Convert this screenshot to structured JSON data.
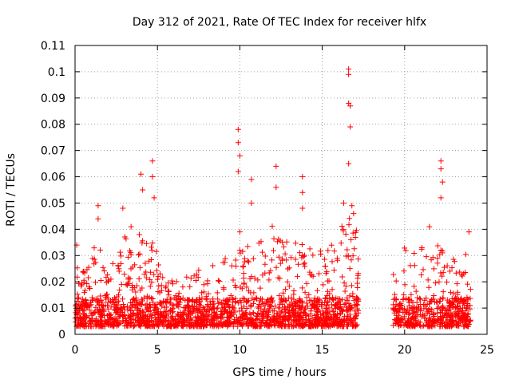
{
  "chart_data": {
    "type": "scatter",
    "title": "Day 312 of 2021, Rate Of TEC Index for receiver hlfx",
    "xlabel": "GPS time / hours",
    "ylabel": "ROTI / TECUs",
    "xlim": [
      0,
      25
    ],
    "ylim": [
      0,
      0.11
    ],
    "x_ticks": [
      "0",
      "5",
      "10",
      "15",
      "20",
      "25"
    ],
    "x_tick_values": [
      0,
      5,
      10,
      15,
      20,
      25
    ],
    "y_ticks": [
      "0",
      "0.01",
      "0.02",
      "0.03",
      "0.04",
      "0.05",
      "0.06",
      "0.07",
      "0.08",
      "0.09",
      "0.1",
      "0.11"
    ],
    "y_tick_values": [
      0,
      0.01,
      0.02,
      0.03,
      0.04,
      0.05,
      0.06,
      0.07,
      0.08,
      0.09,
      0.1,
      0.11
    ],
    "grid": true,
    "marker": "plus",
    "color": "#ff0000",
    "data_gap_hours": [
      17.2,
      19.3
    ],
    "series": [
      {
        "name": "ROTI",
        "envelope": {
          "x": [
            0,
            0.1,
            0.3,
            0.6,
            1.0,
            1.4,
            1.6,
            2.0,
            2.5,
            2.9,
            3.2,
            3.6,
            4.0,
            4.4,
            4.8,
            5.0,
            5.4,
            6.0,
            6.5,
            7.0,
            7.5,
            8.0,
            8.5,
            9.0,
            9.5,
            9.9,
            10.2,
            10.6,
            11.0,
            11.5,
            12.0,
            12.3,
            12.8,
            13.3,
            13.8,
            14.2,
            14.6,
            15.0,
            15.5,
            16.0,
            16.4,
            16.7,
            17.0,
            17.2,
            19.3,
            19.6,
            20.0,
            20.5,
            21.0,
            21.4,
            21.8,
            22.2,
            22.6,
            23.0,
            23.4,
            23.8,
            24.0
          ],
          "upper": [
            0.025,
            0.034,
            0.03,
            0.025,
            0.028,
            0.045,
            0.03,
            0.025,
            0.03,
            0.047,
            0.035,
            0.028,
            0.04,
            0.035,
            0.037,
            0.03,
            0.022,
            0.02,
            0.022,
            0.022,
            0.025,
            0.025,
            0.028,
            0.03,
            0.03,
            0.039,
            0.035,
            0.038,
            0.035,
            0.037,
            0.042,
            0.038,
            0.035,
            0.038,
            0.035,
            0.04,
            0.035,
            0.033,
            0.035,
            0.038,
            0.045,
            0.045,
            0.045,
            0.035,
            0.025,
            0.03,
            0.035,
            0.03,
            0.04,
            0.035,
            0.03,
            0.038,
            0.028,
            0.03,
            0.033,
            0.03,
            0.03
          ],
          "typical_low": 0.003
        },
        "peaks": [
          {
            "x": 0.1,
            "y": 0.034
          },
          {
            "x": 1.4,
            "y": 0.049
          },
          {
            "x": 1.4,
            "y": 0.044
          },
          {
            "x": 2.9,
            "y": 0.048
          },
          {
            "x": 3.4,
            "y": 0.041
          },
          {
            "x": 3.9,
            "y": 0.038
          },
          {
            "x": 4.0,
            "y": 0.061
          },
          {
            "x": 4.1,
            "y": 0.055
          },
          {
            "x": 4.7,
            "y": 0.066
          },
          {
            "x": 4.7,
            "y": 0.06
          },
          {
            "x": 4.8,
            "y": 0.052
          },
          {
            "x": 9.9,
            "y": 0.078
          },
          {
            "x": 9.9,
            "y": 0.073
          },
          {
            "x": 10.0,
            "y": 0.068
          },
          {
            "x": 9.9,
            "y": 0.062
          },
          {
            "x": 10.0,
            "y": 0.039
          },
          {
            "x": 10.7,
            "y": 0.059
          },
          {
            "x": 10.7,
            "y": 0.05
          },
          {
            "x": 12.2,
            "y": 0.064
          },
          {
            "x": 12.2,
            "y": 0.056
          },
          {
            "x": 13.8,
            "y": 0.06
          },
          {
            "x": 13.8,
            "y": 0.054
          },
          {
            "x": 13.8,
            "y": 0.048
          },
          {
            "x": 16.3,
            "y": 0.05
          },
          {
            "x": 16.6,
            "y": 0.101
          },
          {
            "x": 16.6,
            "y": 0.099
          },
          {
            "x": 16.6,
            "y": 0.088
          },
          {
            "x": 16.7,
            "y": 0.087
          },
          {
            "x": 16.7,
            "y": 0.079
          },
          {
            "x": 16.6,
            "y": 0.065
          },
          {
            "x": 16.8,
            "y": 0.049
          },
          {
            "x": 16.9,
            "y": 0.046
          },
          {
            "x": 22.2,
            "y": 0.066
          },
          {
            "x": 22.2,
            "y": 0.063
          },
          {
            "x": 22.3,
            "y": 0.058
          },
          {
            "x": 22.2,
            "y": 0.052
          },
          {
            "x": 21.5,
            "y": 0.041
          },
          {
            "x": 23.9,
            "y": 0.039
          }
        ]
      }
    ]
  }
}
